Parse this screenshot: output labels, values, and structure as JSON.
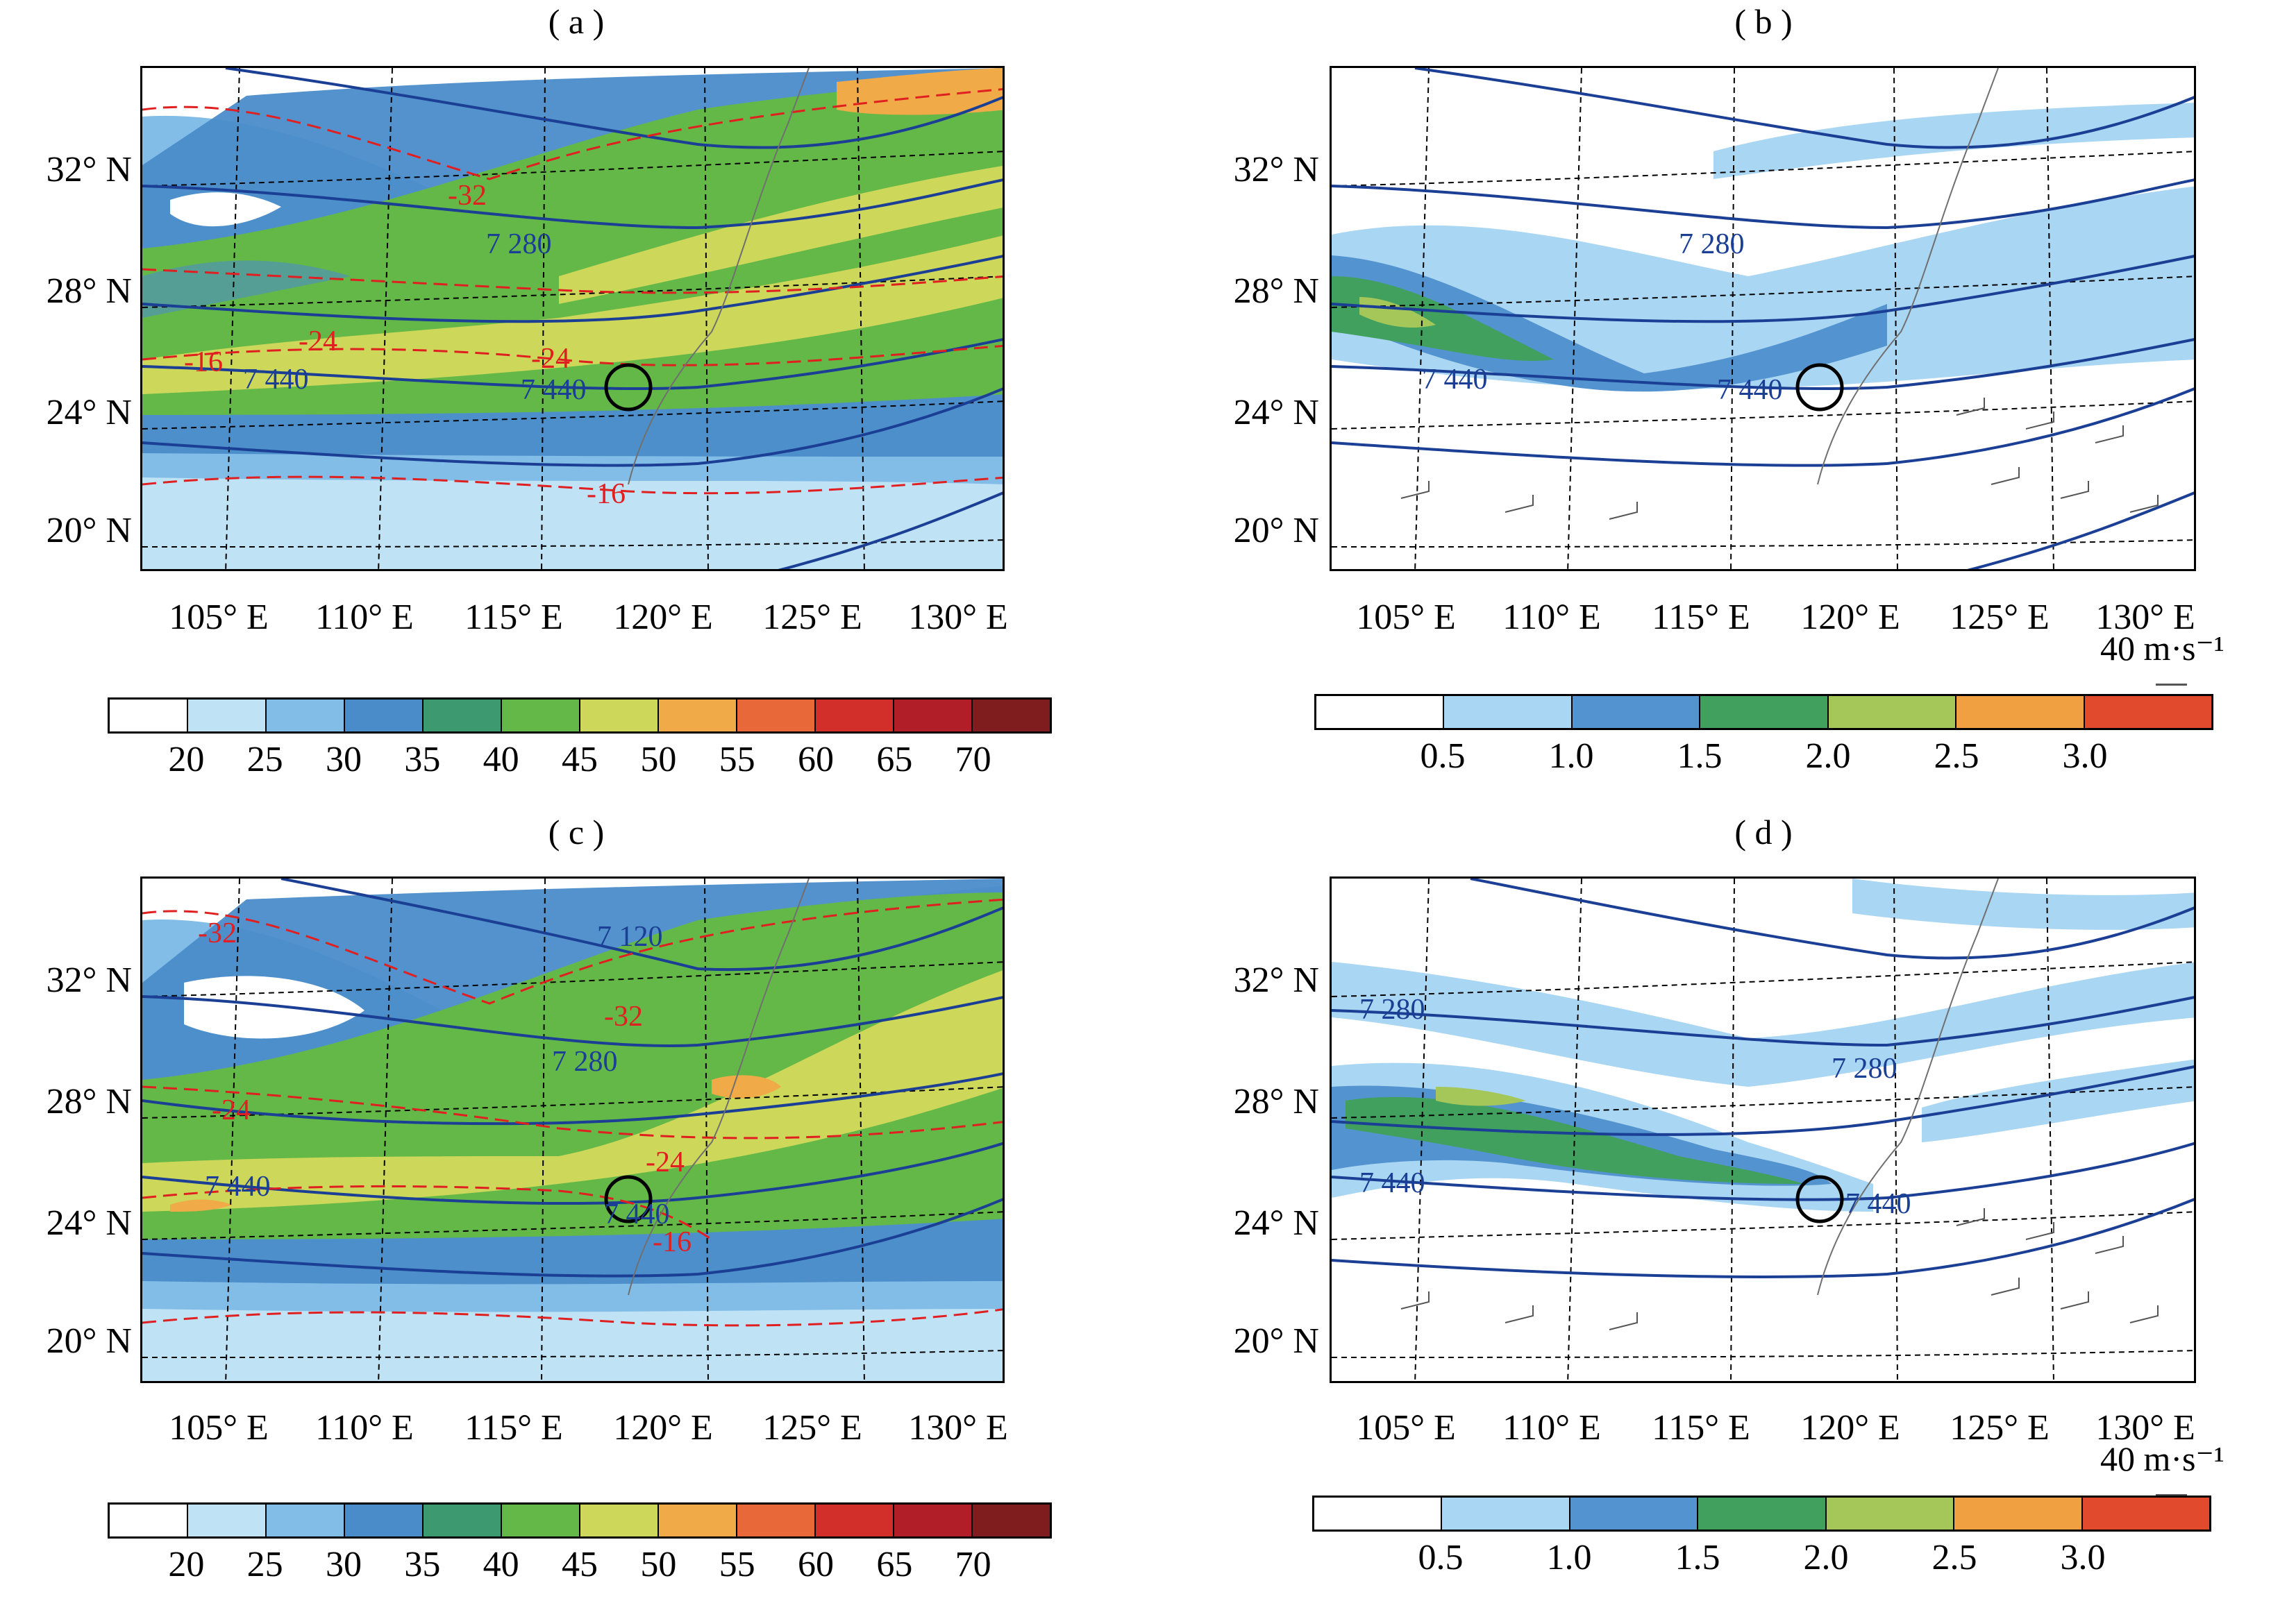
{
  "panels": [
    {
      "id": "a",
      "title": "( a )",
      "type": "jet"
    },
    {
      "id": "b",
      "title": "( b )",
      "type": "wind"
    },
    {
      "id": "c",
      "title": "( c )",
      "type": "jet"
    },
    {
      "id": "d",
      "title": "( d )",
      "type": "wind"
    }
  ],
  "lat_labels": [
    "32° N",
    "28° N",
    "24° N",
    "20° N"
  ],
  "lon_labels": [
    "105° E",
    "110° E",
    "115° E",
    "120° E",
    "125° E",
    "130° E"
  ],
  "contour_labels": {
    "a": {
      "height": [
        "7 280",
        "7 440",
        "7 440"
      ],
      "temp": [
        "-32",
        "-24",
        "-24",
        "-16",
        "-16"
      ]
    },
    "b": {
      "height": [
        "7 280",
        "7 440",
        "7 440"
      ]
    },
    "c": {
      "height": [
        "7 120",
        "7 280",
        "7 440",
        "7 440"
      ],
      "temp": [
        "-32",
        "-32",
        "-24",
        "-24",
        "-16"
      ]
    },
    "d": {
      "height": [
        "7 280",
        "7 280",
        "7 440",
        "7 440"
      ]
    }
  },
  "colorbar_jet": {
    "ticks": [
      "20",
      "25",
      "30",
      "35",
      "40",
      "45",
      "50",
      "55",
      "60",
      "65",
      "70"
    ],
    "colors": [
      "#ffffff",
      "#bfe2f5",
      "#82bde8",
      "#4a8cc9",
      "#3d9970",
      "#64b848",
      "#cdd75a",
      "#f0aa48",
      "#e8683a",
      "#d22f2b",
      "#b21e27",
      "#7f1c1e"
    ]
  },
  "colorbar_wind": {
    "ticks": [
      "0.5",
      "1.0",
      "1.5",
      "2.0",
      "2.5",
      "3.0"
    ],
    "colors": [
      "#ffffff",
      "#a9d6f2",
      "#5393cf",
      "#41a05e",
      "#a5c75a",
      "#f0a040",
      "#e24a2e"
    ]
  },
  "ref_vector": "40 m·s⁻¹",
  "colors": {
    "height": "#1b3f94",
    "temp": "#e02020",
    "coast": "#707070",
    "circle": "#000000"
  }
}
